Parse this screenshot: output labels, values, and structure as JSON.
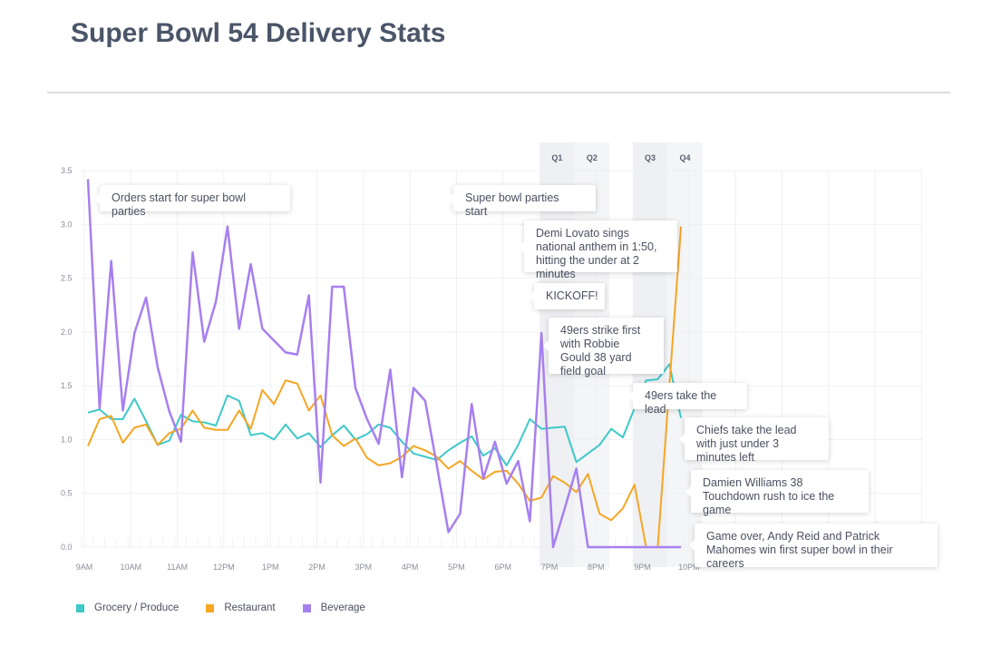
{
  "title": "Super Bowl 54 Delivery Stats",
  "chart_data": {
    "type": "line",
    "title": "Super Bowl 54 Delivery Stats",
    "xlabel": "",
    "ylabel": "",
    "ylim": [
      0,
      3.5
    ],
    "yticks": [
      "0.0",
      "0.5",
      "1.0",
      "1.5",
      "2.0",
      "2.5",
      "3.0",
      "3.5"
    ],
    "xticks": [
      "9AM",
      "10AM",
      "11AM",
      "12PM",
      "1PM",
      "2PM",
      "3PM",
      "4PM",
      "5PM",
      "6PM",
      "7PM",
      "8PM",
      "9PM",
      "10PM"
    ],
    "x_interval": "15 min starting 9AM",
    "grid": true,
    "legend_position": "bottom-left",
    "quarters": [
      {
        "label": "Q1",
        "start": "6:45PM",
        "end": "7:30PM"
      },
      {
        "label": "Q2",
        "start": "7:30PM",
        "end": "8:15PM"
      },
      {
        "label": "Q3",
        "start": "8:45PM",
        "end": "9:30PM"
      },
      {
        "label": "Q4",
        "start": "9:30PM",
        "end": "10:15PM"
      }
    ],
    "series": [
      {
        "name": "Grocery / Produce",
        "color": "#3ec8c9",
        "values": [
          1.25,
          1.28,
          1.19,
          1.19,
          1.38,
          1.17,
          0.95,
          0.99,
          1.23,
          1.17,
          1.16,
          1.13,
          1.41,
          1.36,
          1.04,
          1.06,
          1.0,
          1.14,
          1.01,
          1.06,
          0.93,
          1.04,
          1.13,
          1.0,
          1.05,
          1.14,
          1.11,
          0.98,
          0.87,
          0.84,
          0.81,
          0.9,
          0.97,
          1.03,
          0.85,
          0.92,
          0.76,
          0.95,
          1.19,
          1.1,
          1.11,
          1.12,
          0.79,
          0.87,
          0.95,
          1.1,
          1.02,
          1.29,
          1.55,
          1.56,
          1.7,
          1.2
        ]
      },
      {
        "name": "Restaurant",
        "color": "#f5a623",
        "values": [
          0.94,
          1.19,
          1.22,
          0.97,
          1.11,
          1.14,
          0.95,
          1.06,
          1.1,
          1.27,
          1.11,
          1.09,
          1.09,
          1.27,
          1.1,
          1.46,
          1.33,
          1.55,
          1.52,
          1.27,
          1.41,
          1.04,
          0.94,
          1.01,
          0.83,
          0.76,
          0.78,
          0.84,
          0.94,
          0.9,
          0.84,
          0.73,
          0.8,
          0.71,
          0.63,
          0.7,
          0.71,
          0.59,
          0.43,
          0.46,
          0.66,
          0.6,
          0.51,
          0.68,
          0.31,
          0.25,
          0.36,
          0.58,
          0.0,
          0.0,
          1.5,
          2.98
        ]
      },
      {
        "name": "Beverage",
        "color": "#a77ff0",
        "values": [
          3.42,
          1.29,
          2.66,
          1.27,
          1.99,
          2.32,
          1.67,
          1.26,
          0.98,
          2.74,
          1.91,
          2.28,
          2.98,
          2.03,
          2.63,
          2.03,
          1.92,
          1.81,
          1.79,
          2.34,
          0.6,
          2.42,
          2.42,
          1.48,
          1.19,
          0.96,
          1.65,
          0.65,
          1.48,
          1.36,
          0.76,
          0.14,
          0.31,
          1.33,
          0.64,
          0.98,
          0.59,
          0.8,
          0.24,
          1.99,
          0.0,
          0.36,
          0.73,
          0.0,
          0.0,
          0.0,
          0.0,
          0.0,
          0.0,
          0.0,
          0.0,
          0.0
        ]
      }
    ],
    "annotations": [
      "Orders start for super bowl parties",
      "Super bowl parties start",
      "Demi Lovato sings national anthem in 1:50, hitting the under at 2 minutes",
      "KICKOFF!",
      "49ers strike first with Robbie Gould 38 yard field goal",
      "49ers take the lead",
      "Chiefs take the lead with just under 3 minutes left",
      "Damien Williams 38 Touchdown rush to ice the game",
      "Game over, Andy Reid and Patrick Mahomes win first super bowl in their careers"
    ]
  }
}
